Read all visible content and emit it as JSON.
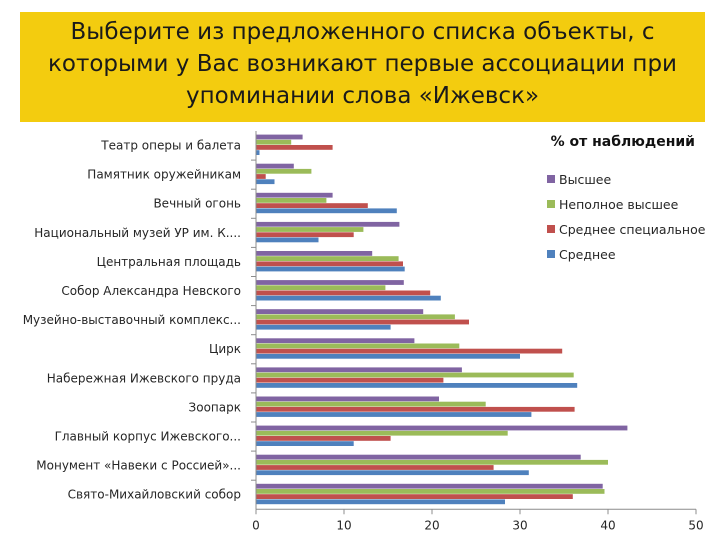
{
  "slide": {
    "title_lines": [
      "Выберите из предложенного списка объекты, с",
      "которыми у Вас возникают первые ассоциации при",
      "упоминании слова «Ижевск»"
    ]
  },
  "chart_data": {
    "type": "bar",
    "orientation": "horizontal",
    "title": "% от наблюдений",
    "xlabel": "",
    "ylabel": "",
    "xlim": [
      0,
      50
    ],
    "xticks": [
      0,
      10,
      20,
      30,
      40,
      50
    ],
    "grid": false,
    "legend_placement": "right",
    "categories": [
      "Театр оперы и балета",
      "Памятник оружейникам",
      "Вечный огонь",
      "Национальный музей УР им. К....",
      "Центральная площадь",
      "Собор Александра Невского",
      "Музейно-выставочный комплекс...",
      "Цирк",
      "Набережная Ижевского пруда",
      "Зоопарк",
      "Главный корпус Ижевского...",
      "Монумент «Навеки с Россией»...",
      "Свято-Михайловский собор"
    ],
    "series": [
      {
        "name": "Высшее",
        "color": "#8064a2",
        "values": [
          5.3,
          4.3,
          8.7,
          16.3,
          13.2,
          16.8,
          19.0,
          18.0,
          23.4,
          20.8,
          42.2,
          36.9,
          39.4
        ]
      },
      {
        "name": "Неполное высшее",
        "color": "#9bbb59",
        "values": [
          4.0,
          6.3,
          8.0,
          12.2,
          16.2,
          14.7,
          22.6,
          23.1,
          36.1,
          26.1,
          28.6,
          40.0,
          39.6
        ]
      },
      {
        "name": "Среднее специальное",
        "color": "#c0504d",
        "values": [
          8.7,
          1.1,
          12.7,
          11.1,
          16.7,
          19.8,
          24.2,
          34.8,
          21.3,
          36.2,
          15.3,
          27.0,
          36.0
        ]
      },
      {
        "name": "Среднее",
        "color": "#4f81bd",
        "values": [
          0.4,
          2.1,
          16.0,
          7.1,
          16.9,
          21.0,
          15.3,
          30.0,
          36.5,
          31.3,
          11.1,
          31.0,
          28.3
        ]
      }
    ]
  }
}
